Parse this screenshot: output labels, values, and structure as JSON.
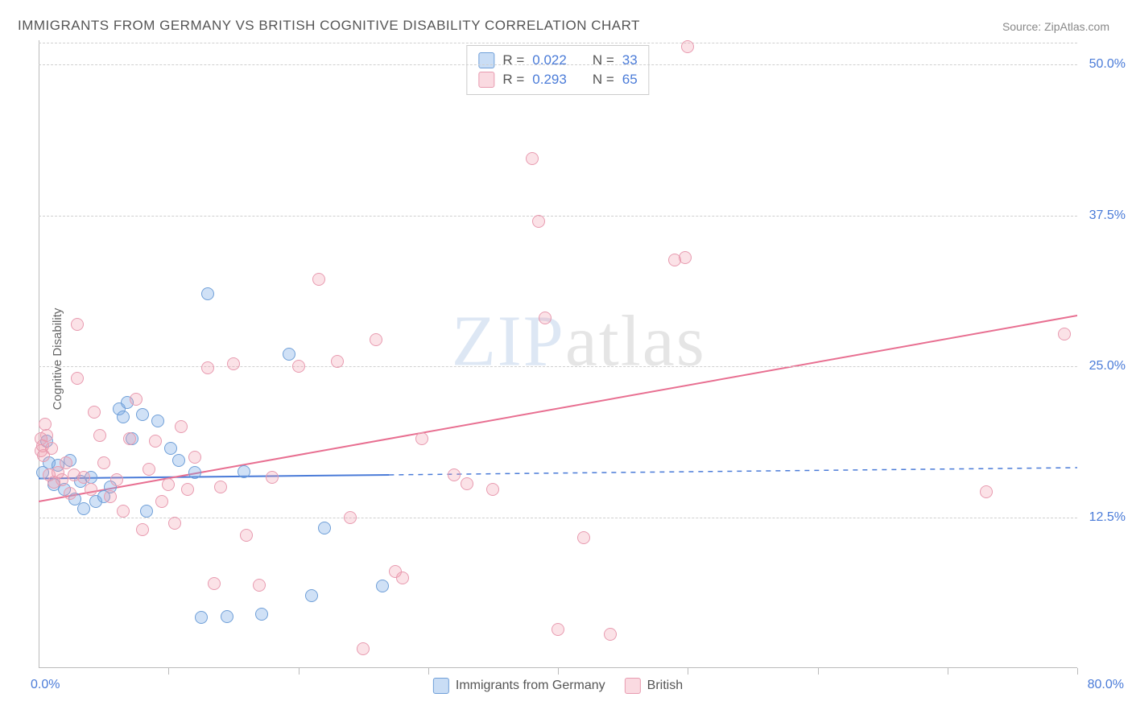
{
  "title": "IMMIGRANTS FROM GERMANY VS BRITISH COGNITIVE DISABILITY CORRELATION CHART",
  "source_label": "Source: ",
  "source_name": "ZipAtlas.com",
  "y_axis_label": "Cognitive Disability",
  "watermark_bold": "ZIP",
  "watermark_thin": "atlas",
  "chart": {
    "type": "scatter",
    "xlim": [
      0,
      80
    ],
    "ylim": [
      0,
      52
    ],
    "y_gridlines": [
      12.5,
      25.0,
      37.5,
      50.0
    ],
    "y_tick_labels": [
      "12.5%",
      "25.0%",
      "37.5%",
      "50.0%"
    ],
    "x_ticks": [
      10,
      20,
      30,
      40,
      50,
      60,
      70,
      80
    ],
    "x_label_min": "0.0%",
    "x_label_max": "80.0%",
    "background_color": "#ffffff",
    "grid_color": "#d0d0d0",
    "axis_color": "#bbbbbb",
    "point_radius": 8,
    "series": [
      {
        "name": "Immigrants from Germany",
        "color_fill": "rgba(120,170,230,0.35)",
        "color_stroke": "#6f9fd8",
        "css_class": "blue",
        "R": "0.022",
        "N": "33",
        "trend": {
          "x1": 0,
          "y1": 15.7,
          "x2": 80,
          "y2": 16.6,
          "solid_until_x": 27,
          "color": "#4a7bd8",
          "width": 2
        },
        "points": [
          [
            0.3,
            16.2
          ],
          [
            0.6,
            18.8
          ],
          [
            0.8,
            17
          ],
          [
            1.2,
            15.2
          ],
          [
            1.5,
            16.8
          ],
          [
            2,
            14.8
          ],
          [
            2.4,
            17.2
          ],
          [
            2.8,
            14
          ],
          [
            3.2,
            15.5
          ],
          [
            3.5,
            13.2
          ],
          [
            4,
            15.8
          ],
          [
            4.4,
            13.8
          ],
          [
            5,
            14.2
          ],
          [
            5.5,
            15
          ],
          [
            6.2,
            21.5
          ],
          [
            6.5,
            20.8
          ],
          [
            6.8,
            22
          ],
          [
            7.2,
            19
          ],
          [
            8,
            21
          ],
          [
            8.3,
            13
          ],
          [
            9.2,
            20.5
          ],
          [
            10.2,
            18.2
          ],
          [
            10.8,
            17.2
          ],
          [
            12,
            16.2
          ],
          [
            12.5,
            4.2
          ],
          [
            13,
            31
          ],
          [
            14.5,
            4.3
          ],
          [
            15.8,
            16.3
          ],
          [
            17.2,
            4.5
          ],
          [
            19.3,
            26
          ],
          [
            21,
            6
          ],
          [
            22,
            11.6
          ],
          [
            26.5,
            6.8
          ]
        ]
      },
      {
        "name": "British",
        "color_fill": "rgba(240,150,170,0.28)",
        "color_stroke": "#e89bb0",
        "css_class": "pink",
        "R": "0.293",
        "N": "65",
        "trend": {
          "x1": 0,
          "y1": 13.8,
          "x2": 80,
          "y2": 29.2,
          "solid_until_x": 80,
          "color": "#e86f91",
          "width": 2
        },
        "points": [
          [
            0.2,
            18
          ],
          [
            0.2,
            19
          ],
          [
            0.3,
            18.4
          ],
          [
            0.4,
            17.6
          ],
          [
            0.5,
            20.2
          ],
          [
            0.6,
            19.3
          ],
          [
            0.8,
            16
          ],
          [
            1,
            18.2
          ],
          [
            1.2,
            15.4
          ],
          [
            1.5,
            16.2
          ],
          [
            1.8,
            15.6
          ],
          [
            2.1,
            17
          ],
          [
            2.4,
            14.5
          ],
          [
            2.7,
            16
          ],
          [
            3,
            28.5
          ],
          [
            3,
            24
          ],
          [
            3.5,
            15.8
          ],
          [
            4,
            14.8
          ],
          [
            4.3,
            21.2
          ],
          [
            4.7,
            19.3
          ],
          [
            5,
            17
          ],
          [
            5.5,
            14.2
          ],
          [
            6,
            15.6
          ],
          [
            6.5,
            13
          ],
          [
            7,
            19
          ],
          [
            7.5,
            22.3
          ],
          [
            8,
            11.5
          ],
          [
            8.5,
            16.5
          ],
          [
            9,
            18.8
          ],
          [
            9.5,
            13.8
          ],
          [
            10,
            15.2
          ],
          [
            10.5,
            12
          ],
          [
            11,
            20
          ],
          [
            11.5,
            14.8
          ],
          [
            12,
            17.5
          ],
          [
            13,
            24.9
          ],
          [
            13.5,
            7
          ],
          [
            14,
            15
          ],
          [
            15,
            25.2
          ],
          [
            16,
            11
          ],
          [
            17,
            6.9
          ],
          [
            18,
            15.8
          ],
          [
            20,
            25
          ],
          [
            21.6,
            32.2
          ],
          [
            23,
            25.4
          ],
          [
            24,
            12.5
          ],
          [
            25,
            1.6
          ],
          [
            26,
            27.2
          ],
          [
            27.5,
            8
          ],
          [
            28,
            7.5
          ],
          [
            29.5,
            19
          ],
          [
            32,
            16
          ],
          [
            33,
            15.3
          ],
          [
            35,
            14.8
          ],
          [
            38,
            42.2
          ],
          [
            38.5,
            37
          ],
          [
            39,
            29
          ],
          [
            40,
            3.2
          ],
          [
            42,
            10.8
          ],
          [
            44,
            2.8
          ],
          [
            49,
            33.8
          ],
          [
            49.8,
            34
          ],
          [
            50,
            51.5
          ],
          [
            73,
            14.6
          ],
          [
            79,
            27.7
          ]
        ]
      }
    ]
  },
  "top_legend": {
    "rows": [
      {
        "swatch": "blue",
        "R_label": "R =",
        "R": "0.022",
        "N_label": "N =",
        "N": "33"
      },
      {
        "swatch": "pink",
        "R_label": "R =",
        "R": "0.293",
        "N_label": "N =",
        "N": "65"
      }
    ]
  },
  "bottom_legend": {
    "items": [
      {
        "swatch": "blue",
        "label": "Immigrants from Germany"
      },
      {
        "swatch": "pink",
        "label": "British"
      }
    ]
  }
}
